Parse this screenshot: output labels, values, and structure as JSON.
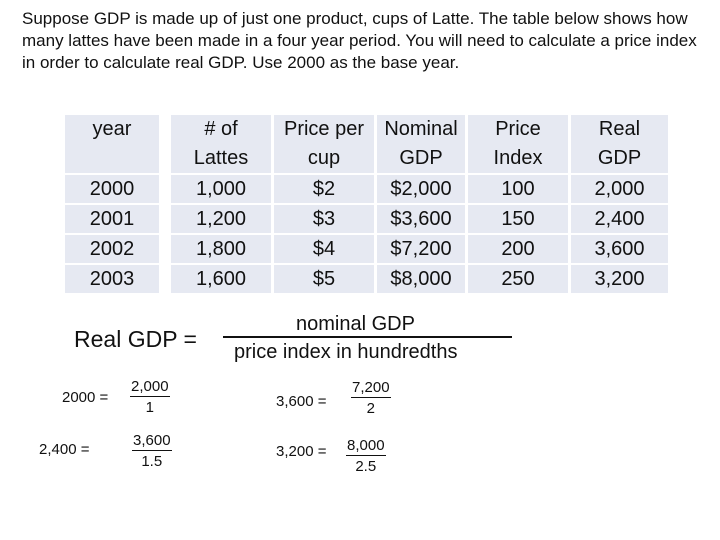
{
  "intro": {
    "text": "Suppose GDP is made up of just one product, cups of Latte. The table below shows how many lattes have been made in a four year period. You will need to calculate a price index in order to calculate real GDP. Use 2000 as the base year."
  },
  "table": {
    "headers": [
      [
        "year"
      ],
      [
        "# of",
        "Lattes"
      ],
      [
        "Price per",
        "cup"
      ],
      [
        "Nominal",
        "GDP"
      ],
      [
        "Price",
        "Index"
      ],
      [
        "Real",
        "GDP"
      ]
    ],
    "rows": [
      [
        "2000",
        "1,000",
        "$2",
        "$2,000",
        "100",
        "2,000"
      ],
      [
        "2001",
        "1,200",
        "$3",
        "$3,600",
        "150",
        "2,400"
      ],
      [
        "2002",
        "1,800",
        "$4",
        "$7,200",
        "200",
        "3,600"
      ],
      [
        "2003",
        "1,600",
        "$5",
        "$8,000",
        "250",
        "3,200"
      ]
    ]
  },
  "formula": {
    "label": "Real GDP =",
    "numerator": "nominal GDP",
    "denominator": "price index in hundredths"
  },
  "examples": [
    {
      "lhs": "2000 =",
      "num": "2,000",
      "den": "1"
    },
    {
      "lhs": "3,600 =",
      "num": "7,200",
      "den": "2"
    },
    {
      "lhs": "2,400 =",
      "num": "3,600",
      "den": "1.5"
    },
    {
      "lhs": "3,200 =",
      "num": "8,000",
      "den": "2.5"
    }
  ]
}
